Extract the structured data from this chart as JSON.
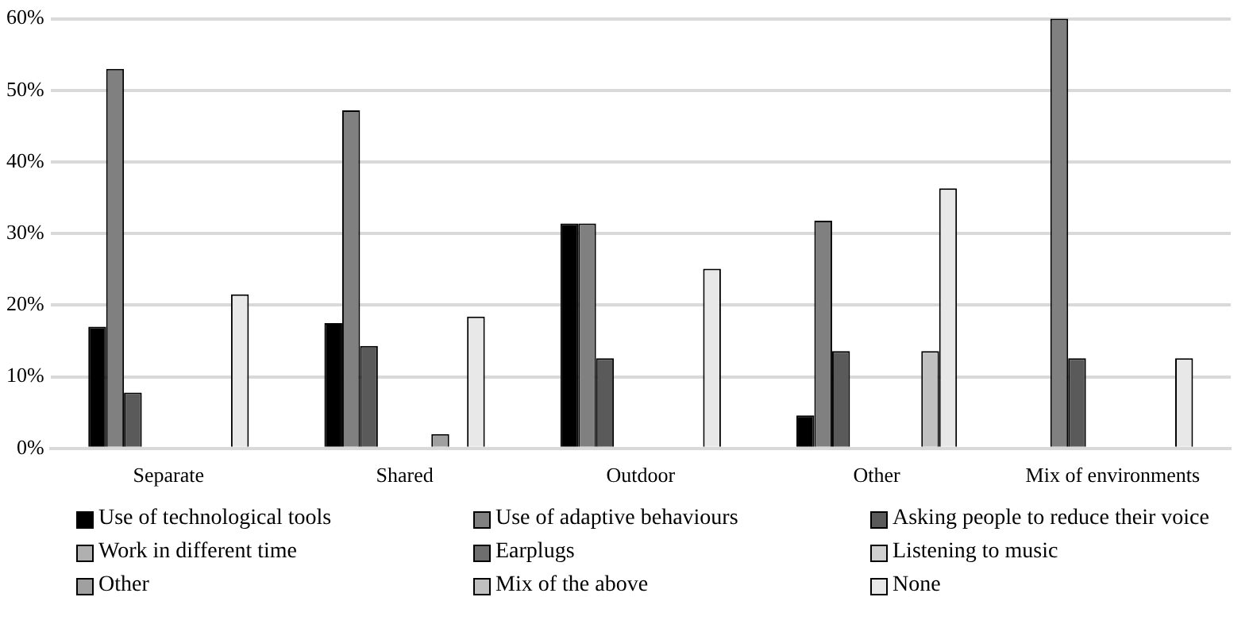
{
  "chart_data": {
    "type": "bar",
    "categories": [
      "Separate",
      "Shared",
      "Outdoor",
      "Other",
      "Mix of environments"
    ],
    "series": [
      {
        "name": "Use of technological tools",
        "color": "#000000",
        "values": [
          17,
          17.5,
          31.4,
          4.6,
          0
        ]
      },
      {
        "name": "Use of adaptive behaviours",
        "color": "#808080",
        "values": [
          53,
          47.2,
          31.4,
          31.8,
          60
        ]
      },
      {
        "name": "Asking people to reduce their voice",
        "color": "#5a5a5a",
        "values": [
          7.8,
          14.3,
          12.6,
          13.6,
          12.6
        ]
      },
      {
        "name": "Work in different time",
        "color": "#b0b0b0",
        "values": [
          0,
          0,
          0,
          0,
          0
        ]
      },
      {
        "name": "Earplugs",
        "color": "#6e6e6e",
        "values": [
          0,
          0,
          0,
          0,
          0
        ]
      },
      {
        "name": "Listening to music",
        "color": "#d0d0d0",
        "values": [
          0,
          0,
          0,
          0,
          0
        ]
      },
      {
        "name": "Other",
        "color": "#a0a0a0",
        "values": [
          0,
          2,
          0,
          0,
          0
        ]
      },
      {
        "name": "Mix of the above",
        "color": "#c0c0c0",
        "values": [
          0,
          0,
          0,
          13.6,
          0
        ]
      },
      {
        "name": "None",
        "color": "#e8e8e8",
        "values": [
          21.5,
          18.4,
          25.1,
          36.3,
          12.6
        ]
      }
    ],
    "ylim": [
      0,
      60
    ],
    "yticks": [
      {
        "value": 0,
        "label": "0%"
      },
      {
        "value": 10,
        "label": "10%"
      },
      {
        "value": 20,
        "label": "20%"
      },
      {
        "value": 30,
        "label": "30%"
      },
      {
        "value": 40,
        "label": "40%"
      },
      {
        "value": 50,
        "label": "50%"
      },
      {
        "value": 60,
        "label": "60%"
      }
    ],
    "grid": "y",
    "legend": "bottom"
  }
}
